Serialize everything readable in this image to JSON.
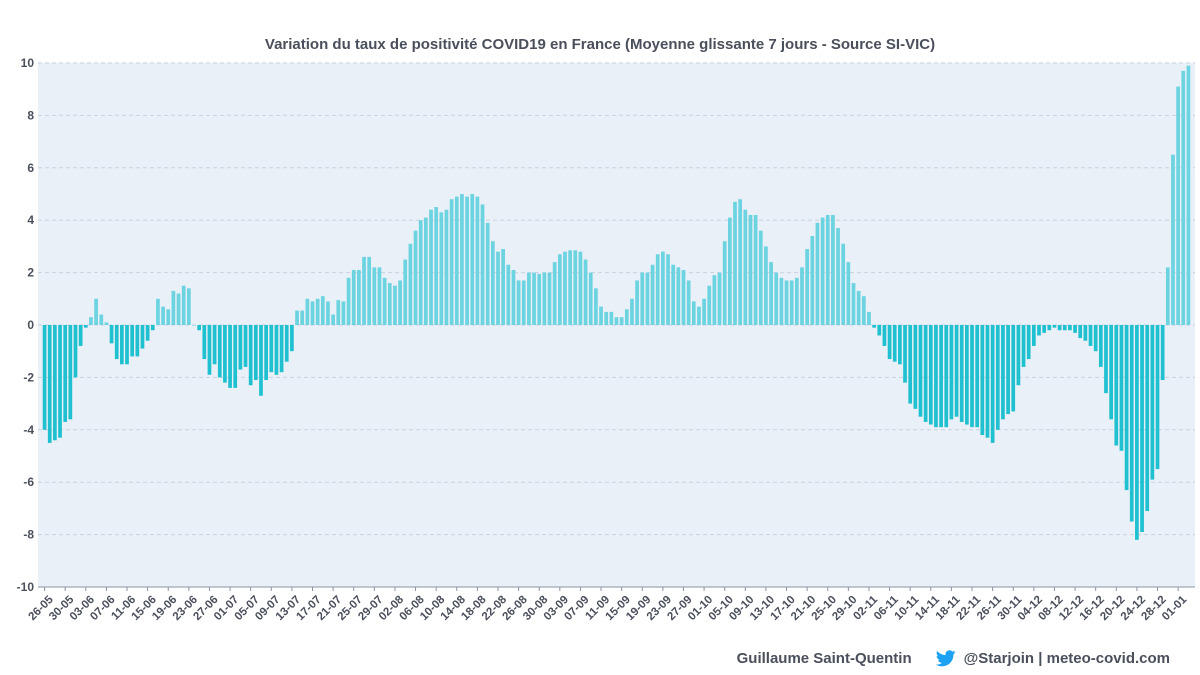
{
  "chart_data": {
    "type": "bar",
    "title": "Variation du taux de positivité COVID19 en France (Moyenne glissante 7 jours - Source SI-VIC)",
    "xlabel": "",
    "ylabel": "",
    "ylim": [
      -10,
      10
    ],
    "y_ticks": [
      10,
      8,
      6,
      4,
      2,
      0,
      -2,
      -4,
      -6,
      -8,
      -10
    ],
    "grid": true,
    "legend": "none",
    "colors": {
      "positive": "#6cd3e1",
      "negative": "#1fc0d0",
      "plot_background": "#eaf0f7",
      "grid": "#c7d2df"
    },
    "x_tick_labels": [
      "26-05",
      "30-05",
      "03-06",
      "07-06",
      "11-06",
      "15-06",
      "19-06",
      "23-06",
      "27-06",
      "01-07",
      "05-07",
      "09-07",
      "13-07",
      "17-07",
      "21-07",
      "25-07",
      "29-07",
      "02-08",
      "06-08",
      "10-08",
      "14-08",
      "18-08",
      "22-08",
      "26-08",
      "30-08",
      "03-09",
      "07-09",
      "11-09",
      "15-09",
      "19-09",
      "23-09",
      "27-09",
      "01-10",
      "05-10",
      "09-10",
      "13-10",
      "17-10",
      "21-10",
      "25-10",
      "29-10",
      "02-11",
      "06-11",
      "10-11",
      "14-11",
      "18-11",
      "22-11",
      "26-11",
      "30-11",
      "04-12",
      "08-12",
      "12-12",
      "16-12",
      "20-12",
      "24-12",
      "28-12",
      "01-01"
    ],
    "values": [
      -4.0,
      -4.5,
      -4.4,
      -4.3,
      -3.7,
      -3.6,
      -2.0,
      -0.8,
      -0.1,
      0.3,
      1.0,
      0.4,
      0.1,
      -0.7,
      -1.3,
      -1.5,
      -1.5,
      -1.2,
      -1.2,
      -0.9,
      -0.6,
      -0.2,
      1.0,
      0.7,
      0.6,
      1.3,
      1.2,
      1.5,
      1.4,
      0.0,
      -0.2,
      -1.3,
      -1.9,
      -1.5,
      -2.0,
      -2.2,
      -2.4,
      -2.4,
      -1.7,
      -1.6,
      -2.3,
      -2.1,
      -2.7,
      -2.1,
      -1.8,
      -1.9,
      -1.8,
      -1.4,
      -1.0,
      0.55,
      0.55,
      1.0,
      0.9,
      1.0,
      1.1,
      0.9,
      0.4,
      0.95,
      0.9,
      1.8,
      2.1,
      2.1,
      2.6,
      2.6,
      2.2,
      2.2,
      1.8,
      1.6,
      1.5,
      1.7,
      2.5,
      3.1,
      3.6,
      4.0,
      4.1,
      4.4,
      4.5,
      4.3,
      4.4,
      4.8,
      4.9,
      5.0,
      4.9,
      5.0,
      4.9,
      4.6,
      3.9,
      3.2,
      2.8,
      2.9,
      2.3,
      2.1,
      1.7,
      1.7,
      2.0,
      2.0,
      1.95,
      2.0,
      2.0,
      2.4,
      2.7,
      2.8,
      2.85,
      2.85,
      2.8,
      2.5,
      2.0,
      1.4,
      0.7,
      0.5,
      0.5,
      0.3,
      0.3,
      0.6,
      1.0,
      1.7,
      2.0,
      2.0,
      2.3,
      2.7,
      2.8,
      2.7,
      2.3,
      2.2,
      2.1,
      1.7,
      0.9,
      0.7,
      1.0,
      1.5,
      1.9,
      2.0,
      3.2,
      4.1,
      4.7,
      4.8,
      4.4,
      4.2,
      4.2,
      3.6,
      3.0,
      2.4,
      2.0,
      1.8,
      1.7,
      1.7,
      1.8,
      2.2,
      2.9,
      3.4,
      3.9,
      4.1,
      4.2,
      4.2,
      3.7,
      3.1,
      2.4,
      1.6,
      1.3,
      1.1,
      0.5,
      -0.1,
      -0.4,
      -0.8,
      -1.3,
      -1.4,
      -1.5,
      -2.2,
      -3.0,
      -3.2,
      -3.5,
      -3.7,
      -3.8,
      -3.9,
      -3.9,
      -3.9,
      -3.6,
      -3.5,
      -3.7,
      -3.8,
      -3.9,
      -3.9,
      -4.2,
      -4.3,
      -4.5,
      -4.0,
      -3.6,
      -3.4,
      -3.3,
      -2.3,
      -1.6,
      -1.3,
      -0.8,
      -0.4,
      -0.3,
      -0.2,
      -0.1,
      -0.2,
      -0.2,
      -0.2,
      -0.3,
      -0.5,
      -0.6,
      -0.8,
      -1.0,
      -1.6,
      -2.6,
      -3.6,
      -4.6,
      -4.8,
      -6.3,
      -7.5,
      -8.2,
      -7.9,
      -7.1,
      -5.9,
      -5.5,
      -2.1,
      2.2,
      6.5,
      9.1,
      9.7,
      9.9
    ]
  },
  "footer": {
    "author": "Guillaume Saint-Quentin",
    "icon": "twitter-bird-icon",
    "handle_site": "@Starjoin | meteo-covid.com"
  }
}
